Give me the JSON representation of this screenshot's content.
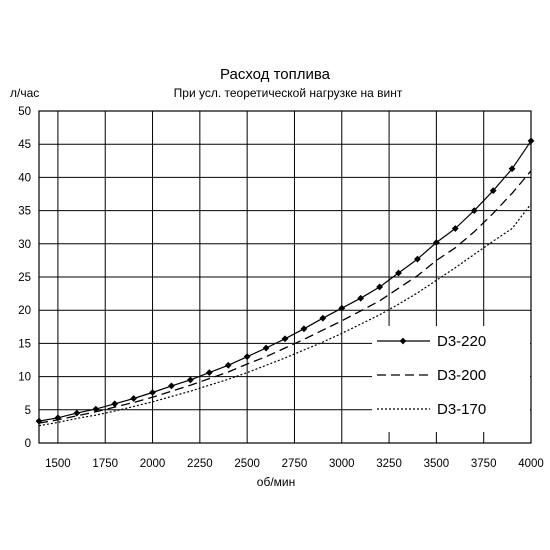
{
  "chart_data": {
    "type": "line",
    "title": "Расход топлива",
    "subtitle": "При усл. теоретической нагрузке на винт",
    "ylabel": "л/час",
    "xlabel": "об/мин",
    "xlim": [
      1400,
      4000
    ],
    "ylim": [
      0,
      50
    ],
    "xticks": [
      1500,
      1750,
      2000,
      2250,
      2500,
      2750,
      3000,
      3250,
      3500,
      3750,
      4000
    ],
    "yticks": [
      0,
      5,
      10,
      15,
      20,
      25,
      30,
      35,
      40,
      45,
      50
    ],
    "grid": true,
    "legend_position": "right",
    "series": [
      {
        "name": "D3-220",
        "style": "solid-diamond",
        "x": [
          1400,
          1500,
          1600,
          1700,
          1800,
          1900,
          2000,
          2100,
          2200,
          2300,
          2400,
          2500,
          2600,
          2700,
          2800,
          2900,
          3000,
          3100,
          3200,
          3300,
          3400,
          3500,
          3600,
          3700,
          3800,
          3900,
          4000
        ],
        "y": [
          3.3,
          3.8,
          4.5,
          5.1,
          5.9,
          6.7,
          7.6,
          8.6,
          9.5,
          10.6,
          11.7,
          13.0,
          14.3,
          15.7,
          17.2,
          18.8,
          20.3,
          21.8,
          23.5,
          25.6,
          27.7,
          30.2,
          32.3,
          35.0,
          38.0,
          41.3,
          45.5
        ]
      },
      {
        "name": "D3-200",
        "style": "dashed",
        "x": [
          1400,
          1500,
          1600,
          1700,
          1800,
          1900,
          2000,
          2100,
          2200,
          2300,
          2400,
          2500,
          2600,
          2700,
          2800,
          2900,
          3000,
          3100,
          3200,
          3300,
          3400,
          3500,
          3600,
          3700,
          3800,
          3900,
          4000
        ],
        "y": [
          3.0,
          3.5,
          4.1,
          4.7,
          5.4,
          6.1,
          6.9,
          7.8,
          8.7,
          9.7,
          10.7,
          11.9,
          13.0,
          14.3,
          15.6,
          17.0,
          18.4,
          19.9,
          21.4,
          23.3,
          25.2,
          27.5,
          29.4,
          31.8,
          34.6,
          37.6,
          41.0
        ]
      },
      {
        "name": "D3-170",
        "style": "dotted",
        "x": [
          1400,
          1500,
          1600,
          1700,
          1800,
          1900,
          2000,
          2100,
          2200,
          2300,
          2400,
          2500,
          2600,
          2700,
          2800,
          2900,
          3000,
          3100,
          3200,
          3300,
          3400,
          3500,
          3600,
          3700,
          3800,
          3900,
          4000
        ],
        "y": [
          2.6,
          3.1,
          3.7,
          4.2,
          4.8,
          5.5,
          6.2,
          7.0,
          7.8,
          8.7,
          9.6,
          10.6,
          11.7,
          12.8,
          14.0,
          15.2,
          16.5,
          17.9,
          19.3,
          20.9,
          22.6,
          24.5,
          26.4,
          28.4,
          30.4,
          32.3,
          36.0
        ]
      }
    ]
  }
}
